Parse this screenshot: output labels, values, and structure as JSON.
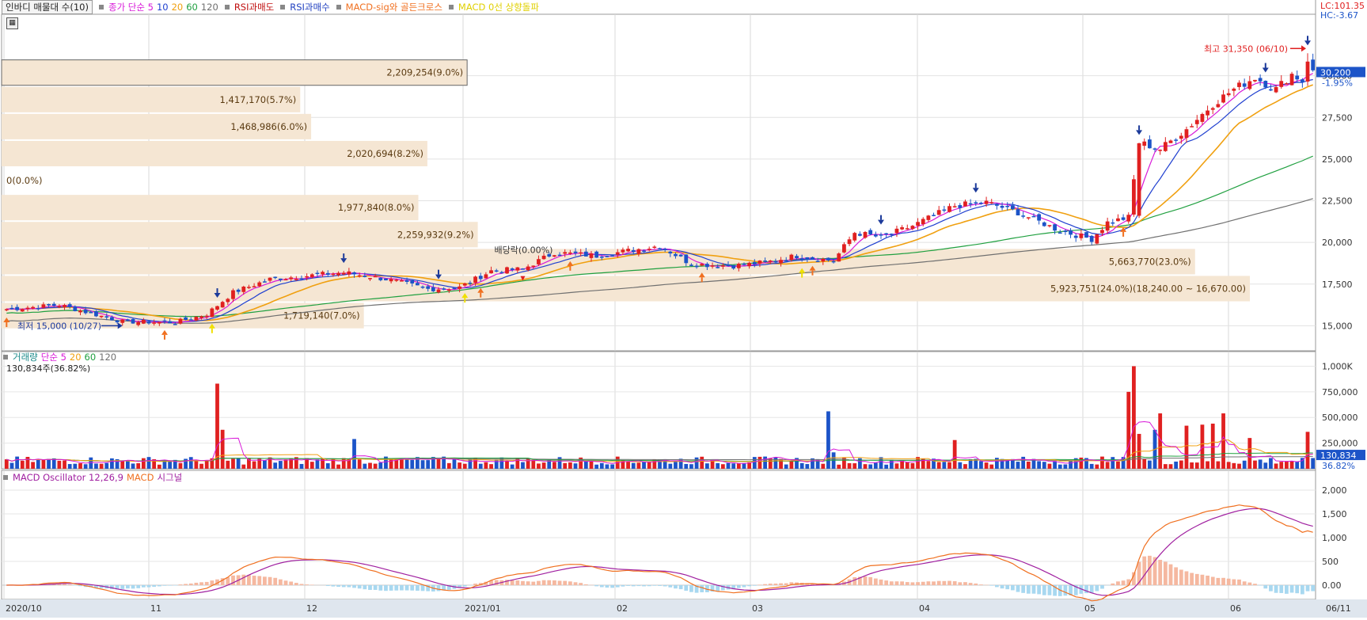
{
  "header": {
    "indicator_pill": "인바디 매물대 수(10)",
    "ma_label": "종가 단순 5",
    "ma_periods": [
      "10",
      "20",
      "60",
      "120"
    ],
    "rsi_sell": "RSI과매도",
    "rsi_buy": "RSI과매수",
    "macd_gc": "MACD-sig와 골든크로스",
    "macd_zero": "MACD 0선 상향돌파"
  },
  "right_info": {
    "lc": "LC:101.35",
    "hc": "HC:-3.67"
  },
  "price_panel": {
    "current_price": "30,200",
    "current_change": "-1.95%",
    "high_note": "최고 31,350 (06/10)",
    "low_note": "최저 15,000 (10/27)",
    "dividend_note": "배당락(0.00%)",
    "y_ticks": [
      "30,000",
      "27,500",
      "25,000",
      "22,500",
      "20,000",
      "17,500",
      "15,000"
    ]
  },
  "volume_profile": [
    {
      "label": "2,209,254(9.0%)"
    },
    {
      "label": "1,417,170(5.7%)"
    },
    {
      "label": "1,468,986(6.0%)"
    },
    {
      "label": "2,020,694(8.2%)"
    },
    {
      "label": "0(0.0%)"
    },
    {
      "label": "1,977,840(8.0%)"
    },
    {
      "label": "2,259,932(9.2%)"
    },
    {
      "label": "5,663,770(23.0%)"
    },
    {
      "label": "5,923,751(24.0%)(18,240.00 ~ 16,670.00)"
    },
    {
      "label": "1,719,140(7.0%)"
    }
  ],
  "volume_panel": {
    "title": "거래량",
    "ma_label": "단순 5",
    "ma_periods": [
      "20",
      "60",
      "120"
    ],
    "current_label": "130,834주(36.82%)",
    "current_value": "130,834",
    "current_pct": "36.82%",
    "y_ticks": [
      "1,000K",
      "750,000",
      "500,000",
      "250,000"
    ]
  },
  "macd_panel": {
    "title": "MACD Oscillator 12,26,9",
    "macd_label": "MACD",
    "signal_label": "시그널",
    "y_ticks": [
      "2,000",
      "1,500",
      "1,000",
      "500",
      "0.00"
    ]
  },
  "x_axis": {
    "labels": [
      "2020/10",
      "11",
      "12",
      "2021/01",
      "02",
      "03",
      "04",
      "05",
      "06",
      "06/11"
    ]
  },
  "colors": {
    "up": "#e02020",
    "down": "#1c54c8",
    "ma5": "#d81ad8",
    "ma10": "#2040d0",
    "ma20": "#f0a010",
    "ma60": "#20a040",
    "ma120": "#707070",
    "profile": "#f5e6d3",
    "osc_pos": "#f5b8a0",
    "osc_neg": "#a8d8f0",
    "macd": "#f07020",
    "signal": "#a020a0"
  },
  "chart_data": {
    "type": "candlestick",
    "title": "",
    "x_range": [
      "2020-10-05",
      "2021-06-11"
    ],
    "price_range": [
      13500,
      33500
    ],
    "volume_range": [
      0,
      1050000
    ],
    "macd_range": [
      -300,
      2250
    ],
    "gridlines": true,
    "waypoints": [
      {
        "i": 0,
        "c": 16000
      },
      {
        "i": 10,
        "c": 16250
      },
      {
        "i": 22,
        "c": 15250
      },
      {
        "i": 32,
        "c": 15200
      },
      {
        "i": 38,
        "c": 15700
      },
      {
        "i": 43,
        "c": 17000
      },
      {
        "i": 50,
        "c": 17800
      },
      {
        "i": 57,
        "c": 18000
      },
      {
        "i": 64,
        "c": 18200
      },
      {
        "i": 72,
        "c": 17800
      },
      {
        "i": 80,
        "c": 17200
      },
      {
        "i": 86,
        "c": 17300
      },
      {
        "i": 92,
        "c": 18300
      },
      {
        "i": 98,
        "c": 18400
      },
      {
        "i": 104,
        "c": 19400
      },
      {
        "i": 112,
        "c": 19200
      },
      {
        "i": 118,
        "c": 19500
      },
      {
        "i": 124,
        "c": 19800
      },
      {
        "i": 130,
        "c": 18700
      },
      {
        "i": 138,
        "c": 18600
      },
      {
        "i": 144,
        "c": 18800
      },
      {
        "i": 150,
        "c": 19200
      },
      {
        "i": 157,
        "c": 18900
      },
      {
        "i": 161,
        "c": 20600
      },
      {
        "i": 166,
        "c": 20300
      },
      {
        "i": 172,
        "c": 21000
      },
      {
        "i": 180,
        "c": 22200
      },
      {
        "i": 186,
        "c": 22400
      },
      {
        "i": 192,
        "c": 21800
      },
      {
        "i": 200,
        "c": 20700
      },
      {
        "i": 206,
        "c": 20200
      },
      {
        "i": 209,
        "c": 21200
      },
      {
        "i": 213,
        "c": 21500
      },
      {
        "i": 215,
        "c": 26000
      },
      {
        "i": 219,
        "c": 25600
      },
      {
        "i": 224,
        "c": 26800
      },
      {
        "i": 229,
        "c": 28300
      },
      {
        "i": 233,
        "c": 29200
      },
      {
        "i": 237,
        "c": 29900
      },
      {
        "i": 241,
        "c": 29200
      },
      {
        "i": 244,
        "c": 30100
      },
      {
        "i": 246,
        "c": 29700
      },
      {
        "i": 247,
        "c": 31000
      },
      {
        "i": 248,
        "c": 30200
      }
    ],
    "volume_spikes": [
      {
        "i": 40,
        "v": 830000
      },
      {
        "i": 41,
        "v": 380000
      },
      {
        "i": 66,
        "v": 290000
      },
      {
        "i": 156,
        "v": 560000
      },
      {
        "i": 157,
        "v": 160000
      },
      {
        "i": 180,
        "v": 280000
      },
      {
        "i": 213,
        "v": 750000
      },
      {
        "i": 214,
        "v": 1000000
      },
      {
        "i": 215,
        "v": 340000
      },
      {
        "i": 218,
        "v": 380000
      },
      {
        "i": 219,
        "v": 540000
      },
      {
        "i": 224,
        "v": 420000
      },
      {
        "i": 227,
        "v": 430000
      },
      {
        "i": 229,
        "v": 440000
      },
      {
        "i": 231,
        "v": 540000
      },
      {
        "i": 236,
        "v": 300000
      },
      {
        "i": 247,
        "v": 360000
      }
    ]
  }
}
